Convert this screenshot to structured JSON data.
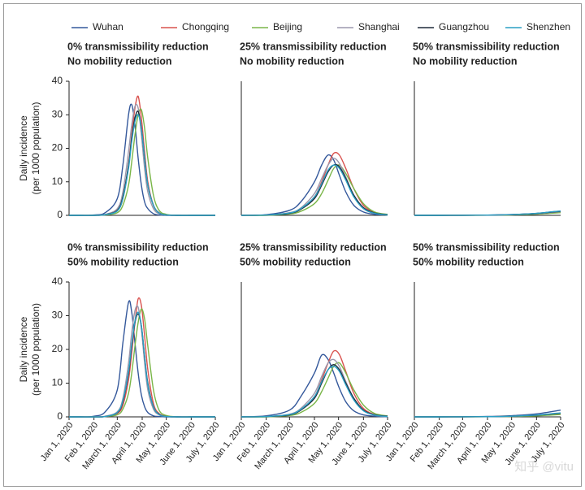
{
  "chart_data": [
    {
      "type": "line",
      "title": "0% transmissibility reduction",
      "subtitle": "No mobility reduction",
      "ylabel": [
        "Daily incidence",
        "(per 1000 population)"
      ],
      "x": [
        "2020-01-01",
        "2020-01-15",
        "2020-02-01",
        "2020-02-15",
        "2020-03-01",
        "2020-03-08",
        "2020-03-15",
        "2020-03-19",
        "2020-03-23",
        "2020-03-27",
        "2020-03-31",
        "2020-04-04",
        "2020-04-08",
        "2020-04-15",
        "2020-04-22",
        "2020-05-01",
        "2020-05-15",
        "2020-06-01",
        "2020-06-15",
        "2020-07-01"
      ],
      "xlim": [
        "2020-01-01",
        "2020-07-01"
      ],
      "ylim": [
        0,
        40
      ],
      "yticks": [
        0,
        10,
        20,
        30,
        40
      ],
      "series": [
        {
          "name": "Wuhan",
          "color": "#34589b",
          "values": [
            0,
            0,
            0.1,
            0.8,
            5,
            15,
            30,
            33,
            27,
            17,
            9,
            4,
            2,
            0.5,
            0.1,
            0,
            0,
            0,
            0,
            0
          ]
        },
        {
          "name": "Chongqing",
          "color": "#d9534f",
          "values": [
            0,
            0,
            0,
            0.2,
            1.5,
            5,
            15,
            24,
            32,
            35.5,
            29,
            19,
            10,
            3,
            0.8,
            0.1,
            0,
            0,
            0,
            0
          ]
        },
        {
          "name": "Beijing",
          "color": "#7ab648",
          "values": [
            0,
            0,
            0,
            0.1,
            0.8,
            3,
            9,
            16,
            24,
            30,
            31.5,
            26,
            17,
            6,
            1.5,
            0.3,
            0,
            0,
            0,
            0
          ]
        },
        {
          "name": "Shanghai",
          "color": "#9b98ad",
          "values": [
            0,
            0,
            0,
            0.3,
            2,
            7,
            19,
            27,
            32.5,
            32,
            24,
            14,
            7,
            2,
            0.5,
            0.1,
            0,
            0,
            0,
            0
          ]
        },
        {
          "name": "Guangzhou",
          "color": "#1e2a3a",
          "values": [
            0,
            0,
            0,
            0.2,
            1.5,
            5.5,
            15,
            23,
            29,
            31,
            26,
            17,
            9,
            3,
            0.7,
            0.1,
            0,
            0,
            0,
            0
          ]
        },
        {
          "name": "Shenzhen",
          "color": "#2a9fc4",
          "values": [
            0,
            0,
            0,
            0.2,
            1.3,
            5,
            14,
            22,
            28,
            30,
            26,
            17,
            9,
            3,
            0.7,
            0.1,
            0,
            0,
            0,
            0
          ]
        }
      ]
    },
    {
      "type": "line",
      "title": "25% transmissibility reduction",
      "subtitle": "No mobility reduction",
      "x": [
        "2020-01-01",
        "2020-02-01",
        "2020-03-01",
        "2020-03-15",
        "2020-04-01",
        "2020-04-10",
        "2020-04-18",
        "2020-04-25",
        "2020-05-02",
        "2020-05-10",
        "2020-05-20",
        "2020-06-01",
        "2020-06-15",
        "2020-07-01"
      ],
      "xlim": [
        "2020-01-01",
        "2020-07-01"
      ],
      "ylim": [
        0,
        40
      ],
      "series": [
        {
          "values": [
            0,
            0.2,
            1.5,
            4,
            10,
            15,
            18,
            16.5,
            12,
            7,
            3,
            1,
            0.3,
            0.1
          ]
        },
        {
          "values": [
            0,
            0.1,
            0.6,
            1.8,
            5.5,
            10,
            15,
            18.5,
            18,
            14,
            8,
            3,
            0.8,
            0.2
          ]
        },
        {
          "values": [
            0,
            0,
            0.4,
            1.2,
            3.5,
            6.5,
            10.5,
            14,
            15,
            12.5,
            8,
            3.5,
            1,
            0.3
          ]
        },
        {
          "values": [
            0,
            0.1,
            0.8,
            2.2,
            6.5,
            11,
            15,
            17,
            15.5,
            11.5,
            6,
            2,
            0.6,
            0.1
          ]
        },
        {
          "values": [
            0,
            0.1,
            0.6,
            1.8,
            5,
            9,
            13,
            15,
            14.5,
            11,
            6,
            2.3,
            0.7,
            0.2
          ]
        },
        {
          "values": [
            0,
            0.1,
            0.7,
            2,
            5.5,
            9.5,
            13.5,
            15,
            14,
            10.5,
            5.5,
            2,
            0.6,
            0.1
          ]
        }
      ]
    },
    {
      "type": "line",
      "title": "50% transmissibility reduction",
      "subtitle": "No mobility reduction",
      "x": [
        "2020-01-01",
        "2020-02-01",
        "2020-03-01",
        "2020-04-01",
        "2020-05-01",
        "2020-06-01",
        "2020-07-01"
      ],
      "xlim": [
        "2020-01-01",
        "2020-07-01"
      ],
      "ylim": [
        0,
        40
      ],
      "series": [
        {
          "values": [
            0,
            0,
            0.02,
            0.08,
            0.25,
            0.6,
            1.3
          ]
        },
        {
          "values": [
            0,
            0,
            0.01,
            0.05,
            0.15,
            0.4,
            0.9
          ]
        },
        {
          "values": [
            0,
            0,
            0.01,
            0.04,
            0.12,
            0.35,
            0.8
          ]
        },
        {
          "values": [
            0,
            0,
            0.02,
            0.06,
            0.2,
            0.5,
            1.1
          ]
        },
        {
          "values": [
            0,
            0,
            0.02,
            0.06,
            0.2,
            0.55,
            1.2
          ]
        },
        {
          "values": [
            0,
            0,
            0.02,
            0.07,
            0.22,
            0.6,
            1.3
          ]
        }
      ]
    },
    {
      "type": "line",
      "title": "0% transmissibility reduction",
      "subtitle": "50% mobility reduction",
      "ylabel": [
        "Daily incidence",
        "(per 1000 population)"
      ],
      "x": [
        "2020-01-01",
        "2020-01-15",
        "2020-02-01",
        "2020-02-15",
        "2020-03-01",
        "2020-03-08",
        "2020-03-15",
        "2020-03-19",
        "2020-03-23",
        "2020-03-27",
        "2020-03-31",
        "2020-04-04",
        "2020-04-08",
        "2020-04-15",
        "2020-04-22",
        "2020-05-01",
        "2020-05-15",
        "2020-06-01",
        "2020-06-15",
        "2020-07-01"
      ],
      "xlim": [
        "2020-01-01",
        "2020-07-01"
      ],
      "ylim": [
        0,
        40
      ],
      "yticks": [
        0,
        10,
        20,
        30,
        40
      ],
      "xticks": [
        {
          "value": "2020-01-01",
          "label": "Jan 1, 2020"
        },
        {
          "value": "2020-02-01",
          "label": "Feb 1, 2020"
        },
        {
          "value": "2020-03-01",
          "label": "March 1, 2020"
        },
        {
          "value": "2020-04-01",
          "label": "April 1, 2020"
        },
        {
          "value": "2020-05-01",
          "label": "May 1, 2020"
        },
        {
          "value": "2020-06-01",
          "label": "June 1, 2020"
        },
        {
          "value": "2020-07-01",
          "label": "July 1, 2020"
        }
      ],
      "series": [
        {
          "values": [
            0,
            0,
            0.2,
            1.5,
            8,
            22,
            34,
            31,
            22,
            13,
            6.5,
            3,
            1.3,
            0.3,
            0.1,
            0,
            0,
            0,
            0,
            0
          ]
        },
        {
          "values": [
            0,
            0,
            0,
            0.1,
            1,
            3.5,
            11,
            19,
            28,
            35,
            33,
            24,
            14,
            4,
            1,
            0.2,
            0,
            0,
            0,
            0
          ]
        },
        {
          "values": [
            0,
            0,
            0,
            0.1,
            0.6,
            2.3,
            7,
            13,
            21,
            28,
            32,
            29,
            21,
            8,
            2,
            0.4,
            0,
            0,
            0,
            0
          ]
        },
        {
          "values": [
            0,
            0,
            0,
            0.2,
            1.5,
            5.5,
            16,
            25,
            31.5,
            32.5,
            26,
            16,
            8,
            2.3,
            0.6,
            0.1,
            0,
            0,
            0,
            0
          ]
        },
        {
          "values": [
            0,
            0,
            0,
            0.1,
            1.2,
            4.5,
            13,
            21,
            28,
            30.5,
            27,
            18,
            10,
            3,
            0.8,
            0.1,
            0,
            0,
            0,
            0
          ]
        },
        {
          "values": [
            0,
            0,
            0,
            0.1,
            1.3,
            4.8,
            13.5,
            21.5,
            28.5,
            31,
            27,
            18,
            9.5,
            3,
            0.7,
            0.1,
            0,
            0,
            0,
            0
          ]
        }
      ]
    },
    {
      "type": "line",
      "title": "25% transmissibility reduction",
      "subtitle": "50% mobility reduction",
      "x": [
        "2020-01-01",
        "2020-02-01",
        "2020-03-01",
        "2020-03-15",
        "2020-04-01",
        "2020-04-10",
        "2020-04-18",
        "2020-04-25",
        "2020-05-02",
        "2020-05-10",
        "2020-05-20",
        "2020-06-01",
        "2020-06-15",
        "2020-07-01"
      ],
      "xlim": [
        "2020-01-01",
        "2020-07-01"
      ],
      "ylim": [
        0,
        40
      ],
      "xticks": [
        {
          "value": "2020-01-01",
          "label": "Jan 1, 2020"
        },
        {
          "value": "2020-02-01",
          "label": "Feb 1, 2020"
        },
        {
          "value": "2020-03-01",
          "label": "March 1, 2020"
        },
        {
          "value": "2020-04-01",
          "label": "April 1, 2020"
        },
        {
          "value": "2020-05-01",
          "label": "May 1, 2020"
        },
        {
          "value": "2020-06-01",
          "label": "June 1, 2020"
        },
        {
          "value": "2020-07-01",
          "label": "July 1, 2020"
        }
      ],
      "series": [
        {
          "values": [
            0,
            0.3,
            2,
            6,
            13,
            18.3,
            17,
            13,
            8.5,
            4.5,
            1.8,
            0.6,
            0.2,
            0
          ]
        },
        {
          "values": [
            0,
            0.1,
            0.6,
            2,
            6,
            11,
            16,
            19.5,
            18.5,
            13.5,
            7,
            2.5,
            0.7,
            0.2
          ]
        },
        {
          "values": [
            0,
            0,
            0.4,
            1.3,
            4,
            7.5,
            11.5,
            15,
            16,
            13,
            8,
            3.5,
            1,
            0.3
          ]
        },
        {
          "values": [
            0,
            0.1,
            0.8,
            2.5,
            7,
            12,
            16,
            17,
            15,
            10.5,
            5.5,
            2,
            0.5,
            0.1
          ]
        },
        {
          "values": [
            0,
            0.1,
            0.6,
            2,
            5.5,
            10,
            14,
            15.5,
            14,
            10,
            5.5,
            2,
            0.6,
            0.2
          ]
        },
        {
          "values": [
            0,
            0.1,
            0.7,
            2.2,
            6,
            10.5,
            14,
            15,
            13.5,
            9.5,
            5,
            1.8,
            0.5,
            0.1
          ]
        }
      ]
    },
    {
      "type": "line",
      "title": "50% transmissibility reduction",
      "subtitle": "50% mobility reduction",
      "x": [
        "2020-01-01",
        "2020-02-01",
        "2020-03-01",
        "2020-04-01",
        "2020-05-01",
        "2020-06-01",
        "2020-07-01"
      ],
      "xlim": [
        "2020-01-01",
        "2020-07-01"
      ],
      "ylim": [
        0,
        40
      ],
      "xticks": [
        {
          "value": "2020-01-01",
          "label": "Jan 1, 2020"
        },
        {
          "value": "2020-02-01",
          "label": "Feb 1, 2020"
        },
        {
          "value": "2020-03-01",
          "label": "March 1, 2020"
        },
        {
          "value": "2020-04-01",
          "label": "April 1, 2020"
        },
        {
          "value": "2020-05-01",
          "label": "May 1, 2020"
        },
        {
          "value": "2020-06-01",
          "label": "June 1, 2020"
        },
        {
          "value": "2020-07-01",
          "label": "July 1, 2020"
        }
      ],
      "series": [
        {
          "values": [
            0,
            0,
            0.03,
            0.12,
            0.35,
            0.9,
            2
          ]
        },
        {
          "values": [
            0,
            0,
            0.01,
            0.05,
            0.15,
            0.4,
            0.9
          ]
        },
        {
          "values": [
            0,
            0,
            0.01,
            0.04,
            0.12,
            0.3,
            0.7
          ]
        },
        {
          "values": [
            0,
            0,
            0.02,
            0.07,
            0.2,
            0.5,
            1.1
          ]
        },
        {
          "values": [
            0,
            0,
            0.02,
            0.06,
            0.2,
            0.5,
            1.1
          ]
        },
        {
          "values": [
            0,
            0,
            0.02,
            0.06,
            0.2,
            0.55,
            1.2
          ]
        }
      ]
    }
  ],
  "watermark": "知乎 @vitu"
}
